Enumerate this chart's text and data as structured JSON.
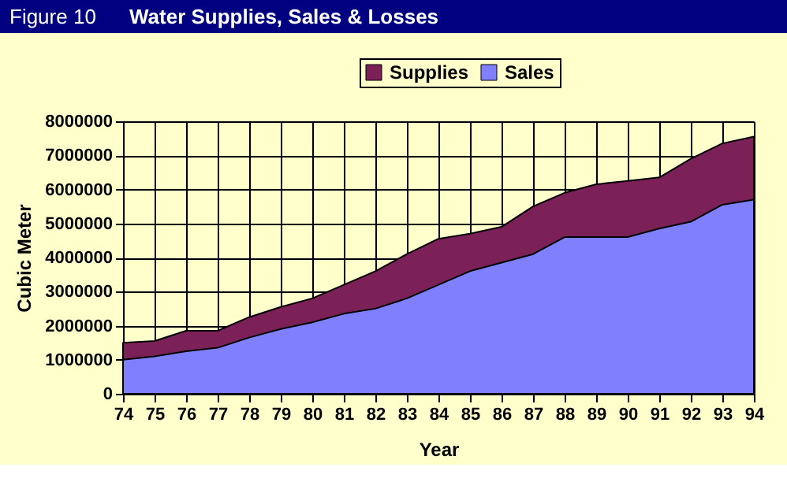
{
  "chart_data": {
    "type": "area",
    "title": "Water Supplies, Sales & Losses",
    "annotations": [
      "Figure 10"
    ],
    "xlabel": "Year",
    "ylabel": "Cubic Meter",
    "categories": [
      "74",
      "75",
      "76",
      "77",
      "78",
      "79",
      "80",
      "81",
      "82",
      "83",
      "84",
      "85",
      "86",
      "87",
      "88",
      "89",
      "90",
      "91",
      "92",
      "93",
      "94"
    ],
    "series": [
      {
        "name": "Supplies",
        "color": "#7b2157",
        "values": [
          1500000,
          1550000,
          1850000,
          1850000,
          2250000,
          2550000,
          2800000,
          3200000,
          3600000,
          4100000,
          4550000,
          4700000,
          4900000,
          5500000,
          5900000,
          6150000,
          6250000,
          6350000,
          6900000,
          7350000,
          7550000
        ]
      },
      {
        "name": "Sales",
        "color": "#8080ff",
        "values": [
          1000000,
          1100000,
          1250000,
          1350000,
          1650000,
          1900000,
          2100000,
          2350000,
          2500000,
          2800000,
          3200000,
          3600000,
          3850000,
          4100000,
          4600000,
          4600000,
          4600000,
          4850000,
          5050000,
          5550000,
          5700000
        ]
      }
    ],
    "ylim": [
      0,
      8000000
    ],
    "yticks": [
      0,
      1000000,
      2000000,
      3000000,
      4000000,
      5000000,
      6000000,
      7000000,
      8000000
    ],
    "grid": true,
    "legend": "top"
  }
}
